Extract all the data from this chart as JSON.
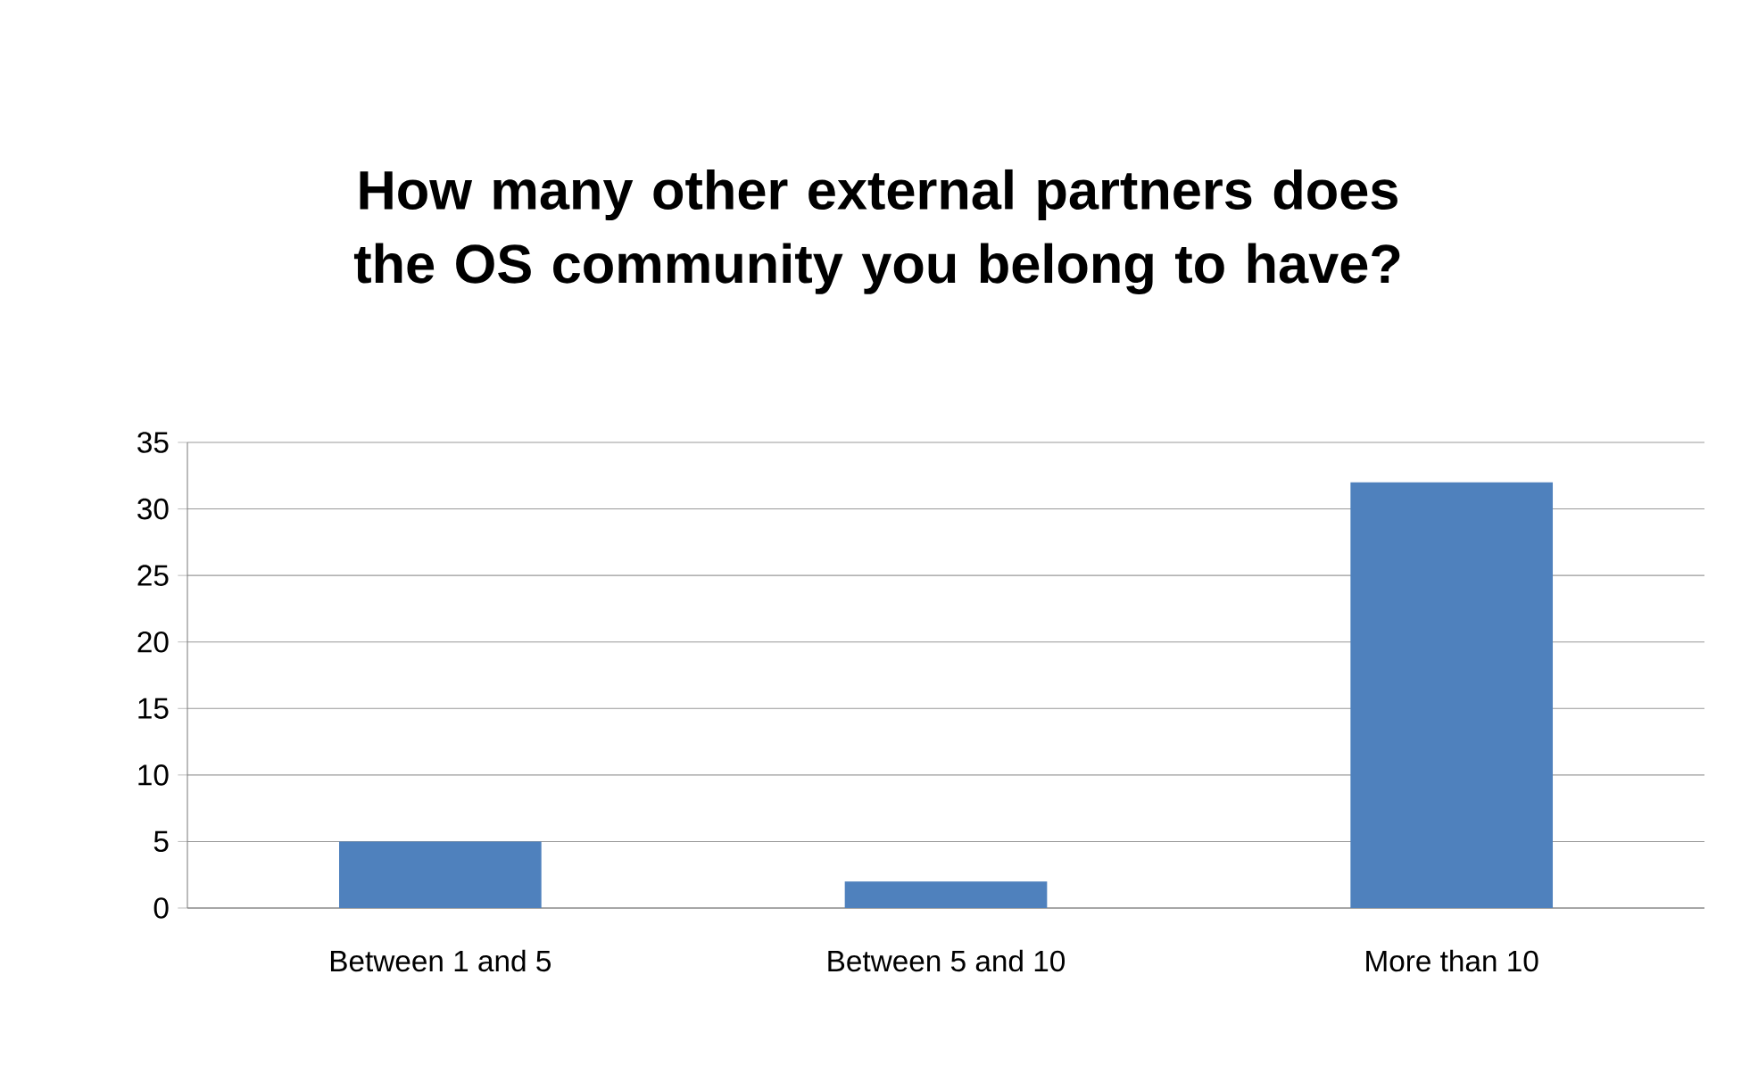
{
  "chart_data": {
    "type": "bar",
    "title": "How many other external partners does the OS community you belong to have?",
    "categories": [
      "Between 1 and 5",
      "Between 5 and 10",
      "More than 10"
    ],
    "values": [
      5,
      2,
      32
    ],
    "color": "#4f81bd",
    "ylim": [
      0,
      35
    ],
    "yticks": [
      0,
      5,
      10,
      15,
      20,
      25,
      30,
      35
    ],
    "grid": "y"
  }
}
